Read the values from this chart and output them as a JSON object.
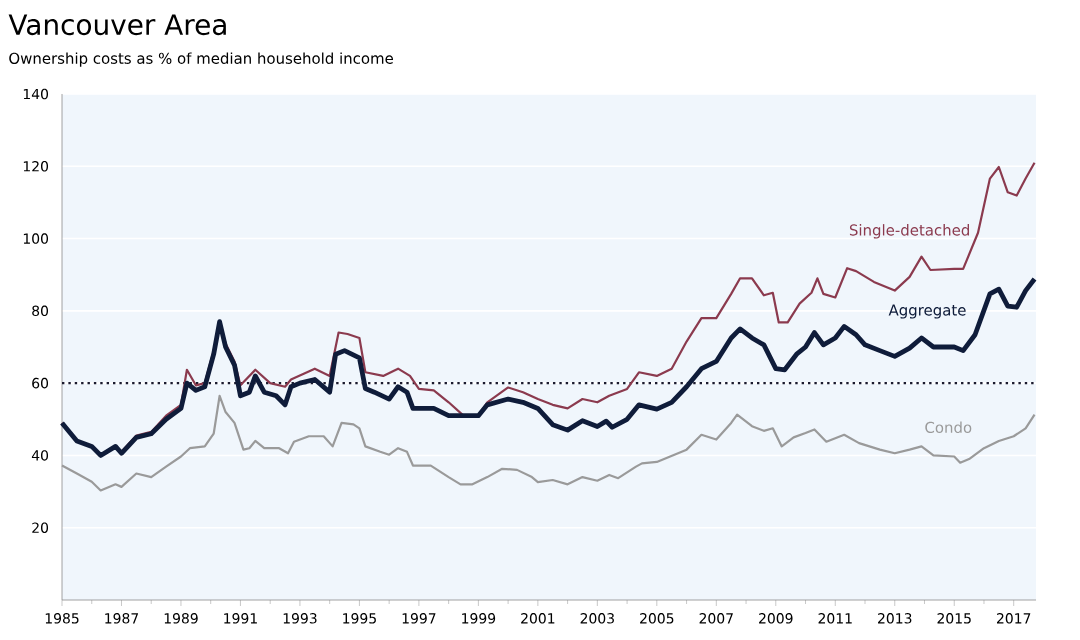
{
  "chart_data": {
    "type": "line",
    "title": "Vancouver Area",
    "subtitle": "Ownership costs as % of median household income",
    "xlim": [
      1985,
      2017.75
    ],
    "ylim": [
      0,
      140
    ],
    "xticks": [
      1985,
      1987,
      1989,
      1991,
      1993,
      1995,
      1997,
      1999,
      2001,
      2003,
      2005,
      2007,
      2009,
      2011,
      2013,
      2015,
      2017
    ],
    "yticks": [
      20,
      40,
      60,
      80,
      100,
      120,
      140
    ],
    "grid": "y",
    "ref_lines": [
      {
        "axis": "y",
        "value": 60,
        "color": "#1a1a2e",
        "line_style": "dotted"
      }
    ],
    "series": [
      {
        "name": "Single-detached",
        "color": "#8b3a4e",
        "x": [
          1985,
          1985.5,
          1986,
          1986.3,
          1986.8,
          1987,
          1987.5,
          1988,
          1988.5,
          1989,
          1989.2,
          1989.5,
          1989.8,
          1990.1,
          1990.3,
          1990.5,
          1990.8,
          1991,
          1991.5,
          1992,
          1992.5,
          1992.7,
          1993.5,
          1994,
          1994.3,
          1994.6,
          1995,
          1995.2,
          1995.8,
          1996.3,
          1996.7,
          1997,
          1997.5,
          1998,
          1998.5,
          1999,
          1999.3,
          2000,
          2000.5,
          2001,
          2001.5,
          2002,
          2002.5,
          2003,
          2003.4,
          2004,
          2004.4,
          2005,
          2005.5,
          2006,
          2006.5,
          2007,
          2007.5,
          2007.8,
          2008.2,
          2008.6,
          2008.9,
          2009.1,
          2009.4,
          2009.8,
          2010.2,
          2010.4,
          2010.6,
          2011,
          2011.4,
          2011.7,
          2012.3,
          2013,
          2013.5,
          2013.9,
          2014.2,
          2015,
          2015.3,
          2015.8,
          2016.2,
          2016.5,
          2016.8,
          2017.1,
          2017.4,
          2017.7
        ],
        "values": [
          49,
          44,
          42.5,
          40,
          42.5,
          41,
          45.5,
          46.5,
          51,
          54,
          63.7,
          59.4,
          60,
          69,
          77,
          71,
          66,
          59.4,
          63.7,
          60,
          59,
          61,
          64,
          62,
          74,
          73.6,
          72.5,
          63,
          62,
          64,
          62,
          58.4,
          58,
          54.7,
          51,
          51,
          54.7,
          58.8,
          57.5,
          55.6,
          54,
          53,
          55.6,
          54.7,
          56.5,
          58.4,
          63,
          62,
          64,
          71.5,
          78,
          78,
          84.7,
          89,
          89,
          84.3,
          85,
          76.8,
          76.8,
          82,
          85,
          89,
          84.7,
          83.7,
          91.8,
          91,
          88,
          85.6,
          89.4,
          95,
          91.3,
          91.6,
          91.6,
          101.6,
          116.6,
          119.8,
          112.8,
          111.9,
          116.6,
          121
        ]
      },
      {
        "name": "Aggregate",
        "color": "#0f1c3a",
        "x": [
          1985,
          1985.5,
          1986,
          1986.3,
          1986.8,
          1987,
          1987.5,
          1988,
          1988.5,
          1989,
          1989.2,
          1989.5,
          1989.8,
          1990.1,
          1990.3,
          1990.5,
          1990.8,
          1991,
          1991.3,
          1991.5,
          1991.8,
          1992.2,
          1992.5,
          1992.7,
          1993,
          1993.5,
          1994,
          1994.2,
          1994.5,
          1995,
          1995.2,
          1995.5,
          1996,
          1996.3,
          1996.6,
          1996.8,
          1997.5,
          1998,
          1998.5,
          1999,
          1999.3,
          2000,
          2000.5,
          2001,
          2001.5,
          2002,
          2002.5,
          2003,
          2003.3,
          2003.5,
          2004,
          2004.4,
          2005,
          2005.5,
          2006,
          2006.5,
          2007,
          2007.5,
          2007.8,
          2008.2,
          2008.6,
          2009,
          2009.3,
          2009.7,
          2010,
          2010.3,
          2010.6,
          2011,
          2011.3,
          2011.7,
          2012,
          2012.5,
          2013,
          2013.5,
          2013.9,
          2014.3,
          2015,
          2015.3,
          2015.7,
          2016.2,
          2016.5,
          2016.8,
          2017.1,
          2017.4,
          2017.7
        ],
        "values": [
          49,
          44,
          42.5,
          40,
          42.5,
          40.6,
          45,
          46,
          50,
          53,
          60,
          58,
          59,
          68,
          77,
          70,
          65,
          56.5,
          57.5,
          62,
          57.5,
          56.5,
          54,
          59,
          60,
          61,
          57.5,
          68,
          69,
          67,
          58.5,
          57.5,
          55.6,
          59,
          57.5,
          53,
          53,
          51,
          51,
          51,
          54,
          55.6,
          54.7,
          53,
          48.5,
          47,
          49.6,
          48,
          49.5,
          47.8,
          50,
          54,
          52.8,
          54.7,
          59,
          64,
          66,
          72.5,
          75,
          72.5,
          70.6,
          64,
          63.7,
          68,
          70,
          74,
          70.6,
          72.5,
          75.7,
          73.4,
          70.6,
          69,
          67.4,
          69.7,
          72.5,
          70,
          70,
          69,
          73.4,
          84.7,
          86,
          81.3,
          81,
          85.6,
          88.8
        ]
      },
      {
        "name": "Condo",
        "color": "#9a9a9a",
        "x": [
          1985,
          1985.5,
          1986,
          1986.3,
          1986.8,
          1987,
          1987.5,
          1988,
          1988.5,
          1989,
          1989.3,
          1989.8,
          1990.1,
          1990.3,
          1990.5,
          1990.8,
          1991.1,
          1991.3,
          1991.5,
          1991.8,
          1992.3,
          1992.6,
          1992.8,
          1993.3,
          1993.8,
          1994.1,
          1994.4,
          1994.8,
          1995,
          1995.2,
          1995.7,
          1996,
          1996.3,
          1996.6,
          1996.8,
          1997.4,
          1998,
          1998.4,
          1998.8,
          1999.3,
          1999.8,
          2000.3,
          2000.8,
          2001,
          2001.5,
          2002,
          2002.5,
          2003,
          2003.4,
          2003.7,
          2004.3,
          2004.5,
          2005,
          2006,
          2006.5,
          2007,
          2007.5,
          2007.7,
          2008.2,
          2008.6,
          2008.9,
          2009.2,
          2009.6,
          2010,
          2010.3,
          2010.7,
          2011.3,
          2011.8,
          2012.5,
          2013,
          2013.5,
          2013.9,
          2014.3,
          2015,
          2015.2,
          2015.5,
          2016,
          2016.5,
          2017,
          2017.4,
          2017.7
        ],
        "values": [
          37.2,
          35,
          32.7,
          30.3,
          32,
          31.3,
          35,
          34,
          36.9,
          39.7,
          42,
          42.5,
          46,
          56.5,
          52,
          49,
          41.6,
          42,
          44,
          42,
          42,
          40.6,
          43.8,
          45.3,
          45.3,
          42.5,
          49,
          48.6,
          47.5,
          42.5,
          41,
          40.2,
          42,
          41,
          37.2,
          37.2,
          34,
          32,
          32,
          34,
          36.3,
          36,
          34,
          32.6,
          33.2,
          32,
          34,
          33,
          34.6,
          33.7,
          36.9,
          37.8,
          38.2,
          41.6,
          45.7,
          44.4,
          49,
          51.3,
          48.1,
          46.8,
          47.5,
          42.5,
          45,
          46.2,
          47.2,
          43.8,
          45.7,
          43.4,
          41.6,
          40.6,
          41.6,
          42.5,
          40,
          39.7,
          38,
          39,
          42,
          44,
          45.3,
          47.5,
          51.3
        ]
      }
    ]
  }
}
